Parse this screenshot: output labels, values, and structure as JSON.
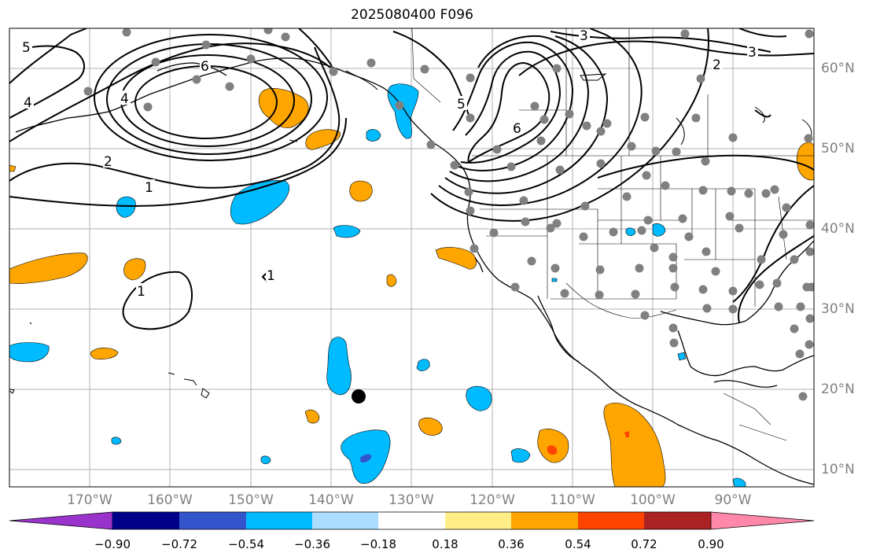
{
  "title": "2025080400 F096",
  "lat_labels": [
    "60°N",
    "50°N",
    "40°N",
    "30°N",
    "20°N",
    "10°N"
  ],
  "lon_labels": [
    "170°W",
    "160°W",
    "150°W",
    "140°W",
    "130°W",
    "120°W",
    "110°W",
    "100°W",
    "90°W"
  ],
  "contour_labels": [
    "5",
    "4",
    "6",
    "4",
    "2",
    "1",
    "1",
    "1",
    "3",
    "2",
    "3",
    "5",
    "6"
  ],
  "colorbar": {
    "ticks": [
      "−0.90",
      "−0.72",
      "−0.54",
      "−0.36",
      "−0.18",
      "0.18",
      "0.36",
      "0.54",
      "0.72",
      "0.90"
    ],
    "colors": [
      "#9933cc",
      "#000088",
      "#3355cc",
      "#00bbff",
      "#aaddff",
      "#ffffff",
      "#ffee88",
      "#ffa500",
      "#ff4400",
      "#aa2222",
      "#ff88aa"
    ]
  },
  "colors": {
    "positive": "#ffa500",
    "strong_positive": "#ff4400",
    "negative": "#00bbff",
    "strong_negative": "#3355cc",
    "station_dots": "#808080",
    "grid": "#b0b0b0"
  }
}
